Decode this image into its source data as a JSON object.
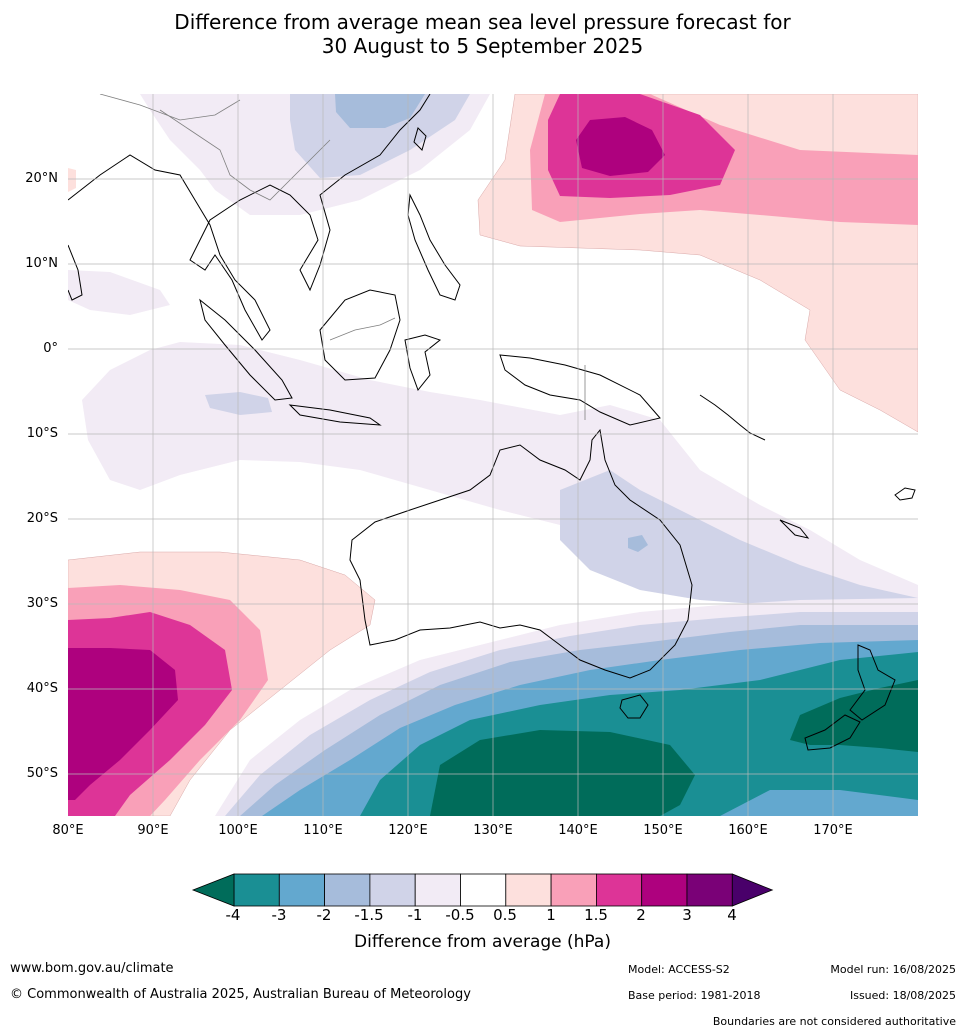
{
  "title_line1": "Difference from average mean sea level pressure forecast for",
  "title_line2": "30 August to 5 September 2025",
  "latitude_labels": [
    "20°N",
    "10°N",
    "0°",
    "10°S",
    "20°S",
    "30°S",
    "40°S",
    "50°S"
  ],
  "longitude_labels": [
    "80°E",
    "90°E",
    "100°E",
    "110°E",
    "120°E",
    "130°E",
    "140°E",
    "150°E",
    "160°E",
    "170°E"
  ],
  "colorbar": {
    "tick_labels": [
      "-4",
      "-3",
      "-2",
      "-1.5",
      "-1",
      "-0.5",
      "0.5",
      "1",
      "1.5",
      "2",
      "3",
      "4"
    ],
    "colors": [
      "#1a8f94",
      "#63a8cf",
      "#a6bcdb",
      "#d0d3e8",
      "#f2ebf5",
      "#ffffff",
      "#fde0dd",
      "#f9a0b8",
      "#dd3497",
      "#ae017e",
      "#7a0177"
    ],
    "under_color": "#006c5a",
    "over_color": "#49006a",
    "label": "Difference from average (hPa)"
  },
  "footer": {
    "website": "www.bom.gov.au/climate",
    "copyright": "© Commonwealth of Australia 2025, Australian Bureau of Meteorology",
    "model": "Model: ACCESS-S2",
    "base_period": "Base period: 1981-2018",
    "model_run": "Model run: 16/08/2025",
    "issued": "Issued: 18/08/2025",
    "disclaimer": "Boundaries are not considered authoritative"
  }
}
